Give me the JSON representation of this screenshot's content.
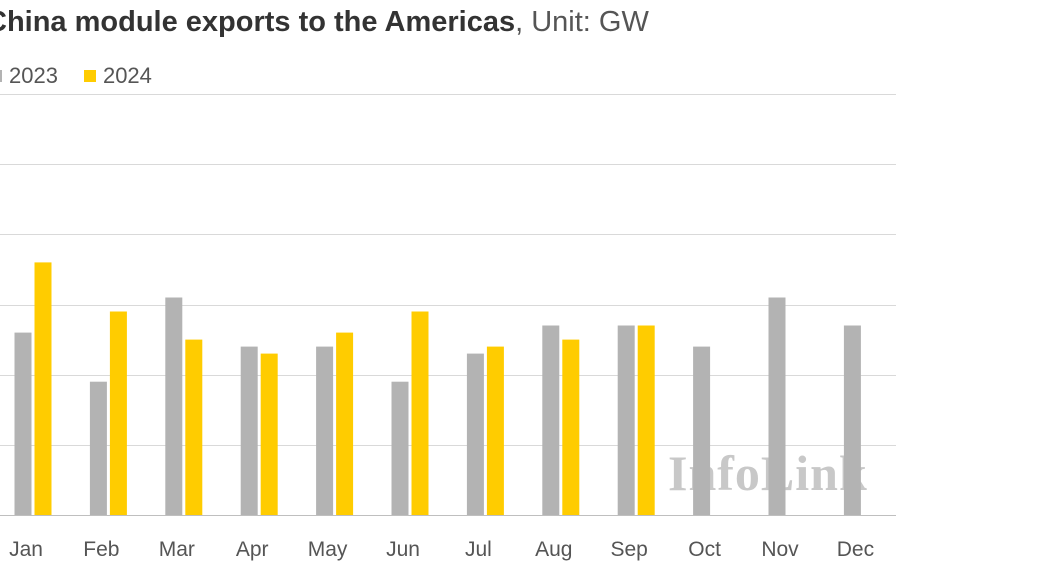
{
  "chart_data": {
    "type": "bar",
    "title": "China module exports to the Americas",
    "unit": ", Unit: GW",
    "categories": [
      "Jan",
      "Feb",
      "Mar",
      "Apr",
      "May",
      "Jun",
      "Jul",
      "Aug",
      "Sep",
      "Oct",
      "Nov",
      "Dec"
    ],
    "series": [
      {
        "name": "2023",
        "color": "#b3b3b3",
        "values": [
          2.6,
          1.9,
          3.1,
          2.4,
          2.4,
          1.9,
          2.3,
          2.7,
          2.7,
          2.4,
          3.1,
          2.7
        ]
      },
      {
        "name": "2024",
        "color": "#ffcc00",
        "values": [
          3.6,
          2.9,
          2.5,
          2.3,
          2.6,
          2.9,
          2.4,
          2.5,
          2.7,
          null,
          null,
          null
        ]
      }
    ],
    "ylim": [
      0,
      6
    ],
    "grid": true,
    "legend": "top-left"
  },
  "watermark": "InfoLink"
}
